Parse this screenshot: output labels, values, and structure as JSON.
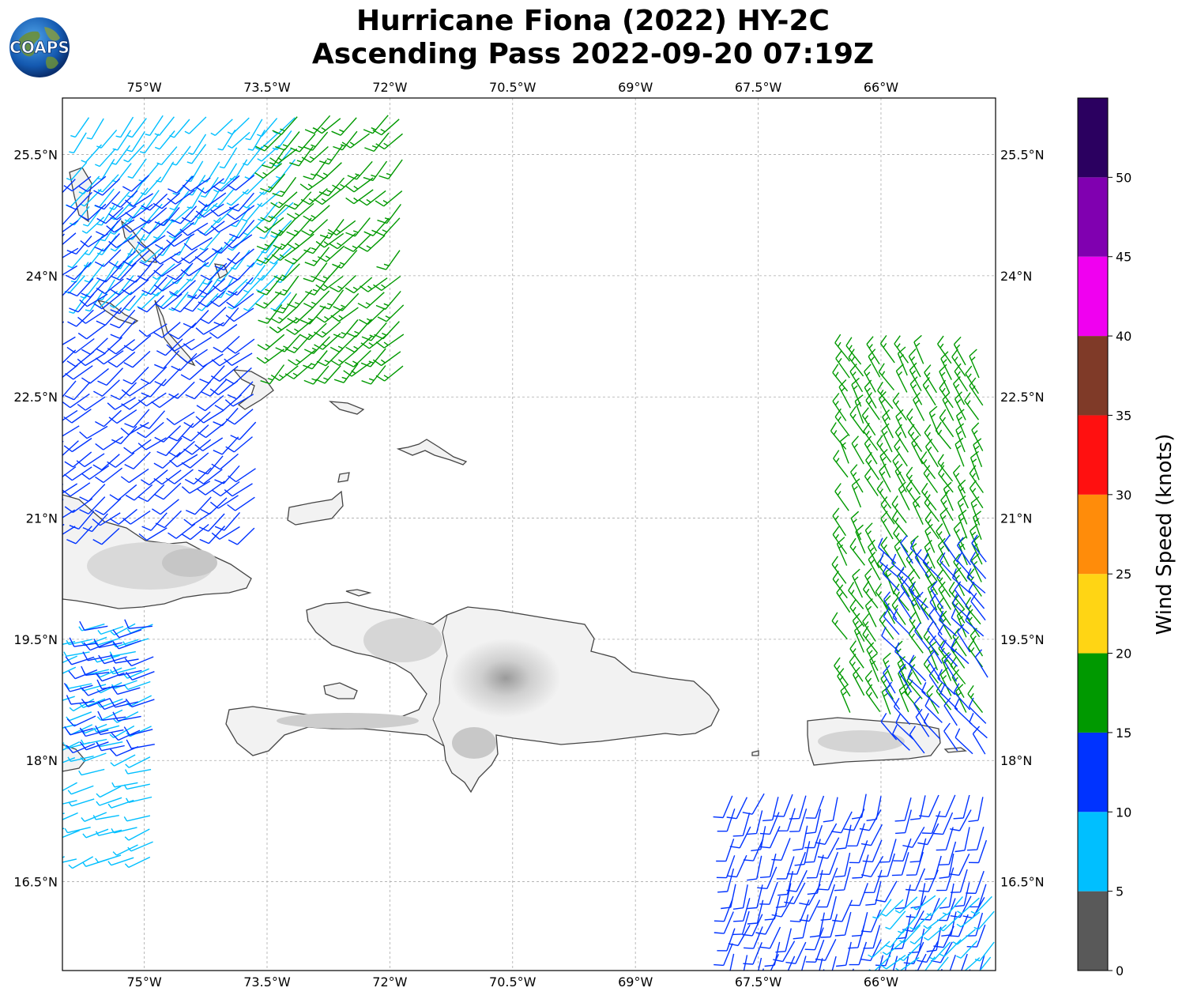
{
  "title": {
    "line1": "Hurricane Fiona (2022) HY-2C",
    "line2": "Ascending Pass 2022-09-20 07:19Z"
  },
  "logo": {
    "text": "COAPS",
    "icon": "globe-icon"
  },
  "map": {
    "lon_range": [
      -76.0,
      -64.6
    ],
    "lat_range": [
      15.4,
      26.2
    ],
    "lon_ticks": [
      {
        "value": -75.0,
        "label": "75°W"
      },
      {
        "value": -73.5,
        "label": "73.5°W"
      },
      {
        "value": -72.0,
        "label": "72°W"
      },
      {
        "value": -70.5,
        "label": "70.5°W"
      },
      {
        "value": -69.0,
        "label": "69°W"
      },
      {
        "value": -67.5,
        "label": "67.5°W"
      },
      {
        "value": -66.0,
        "label": "66°W"
      }
    ],
    "lat_ticks": [
      {
        "value": 25.5,
        "label": "25.5°N"
      },
      {
        "value": 24.0,
        "label": "24°N"
      },
      {
        "value": 22.5,
        "label": "22.5°N"
      },
      {
        "value": 21.0,
        "label": "21°N"
      },
      {
        "value": 19.5,
        "label": "19.5°N"
      },
      {
        "value": 18.0,
        "label": "18°N"
      },
      {
        "value": 16.5,
        "label": "16.5°N"
      }
    ],
    "grid": true,
    "land_color": "#f2f2f2",
    "coast_color": "#444444"
  },
  "colorbar": {
    "label": "Wind Speed (knots)",
    "bins": [
      {
        "min": 0,
        "max": 5,
        "color": "#595959"
      },
      {
        "min": 5,
        "max": 10,
        "color": "#00bfff"
      },
      {
        "min": 10,
        "max": 15,
        "color": "#0033ff"
      },
      {
        "min": 15,
        "max": 20,
        "color": "#009900"
      },
      {
        "min": 20,
        "max": 25,
        "color": "#ffd514"
      },
      {
        "min": 25,
        "max": 30,
        "color": "#ff8c0a"
      },
      {
        "min": 30,
        "max": 35,
        "color": "#ff1010"
      },
      {
        "min": 35,
        "max": 40,
        "color": "#7f3a28"
      },
      {
        "min": 40,
        "max": 45,
        "color": "#f000f0"
      },
      {
        "min": 45,
        "max": 50,
        "color": "#8000b0"
      },
      {
        "min": 50,
        "max": 55,
        "color": "#2b0060"
      }
    ],
    "tick_labels": [
      "0",
      "5",
      "10",
      "15",
      "20",
      "25",
      "30",
      "35",
      "40",
      "45",
      "50"
    ]
  },
  "wind_regions": [
    {
      "name": "northwest",
      "lon": [
        -75.7,
        -73.0
      ],
      "lat": [
        23.8,
        26.0
      ],
      "dir": 220,
      "speed": 8
    },
    {
      "name": "northwest",
      "lon": [
        -76.0,
        -73.5
      ],
      "lat": [
        20.9,
        25.3
      ],
      "dir": 230,
      "speed": 12
    },
    {
      "name": "northwest",
      "lon": [
        -73.3,
        -71.8
      ],
      "lat": [
        22.9,
        26.0
      ],
      "dir": 225,
      "speed": 17
    },
    {
      "name": "west",
      "lon": [
        -76.0,
        -74.8
      ],
      "lat": [
        16.8,
        19.8
      ],
      "dir": 250,
      "speed": 8
    },
    {
      "name": "west",
      "lon": [
        -75.6,
        -74.8
      ],
      "lat": [
        18.2,
        19.8
      ],
      "dir": 255,
      "speed": 12
    },
    {
      "name": "east",
      "lon": [
        -66.4,
        -64.6
      ],
      "lat": [
        18.6,
        23.0
      ],
      "dir": 330,
      "speed": 17
    },
    {
      "name": "east",
      "lon": [
        -65.8,
        -64.6
      ],
      "lat": [
        18.1,
        20.6
      ],
      "dir": 320,
      "speed": 12
    },
    {
      "name": "southeast",
      "lon": [
        -67.8,
        -64.6
      ],
      "lat": [
        15.4,
        17.7
      ],
      "dir": 200,
      "speed": 12
    },
    {
      "name": "southeast",
      "lon": [
        -65.9,
        -64.6
      ],
      "lat": [
        15.4,
        16.3
      ],
      "dir": 225,
      "speed": 8
    }
  ]
}
